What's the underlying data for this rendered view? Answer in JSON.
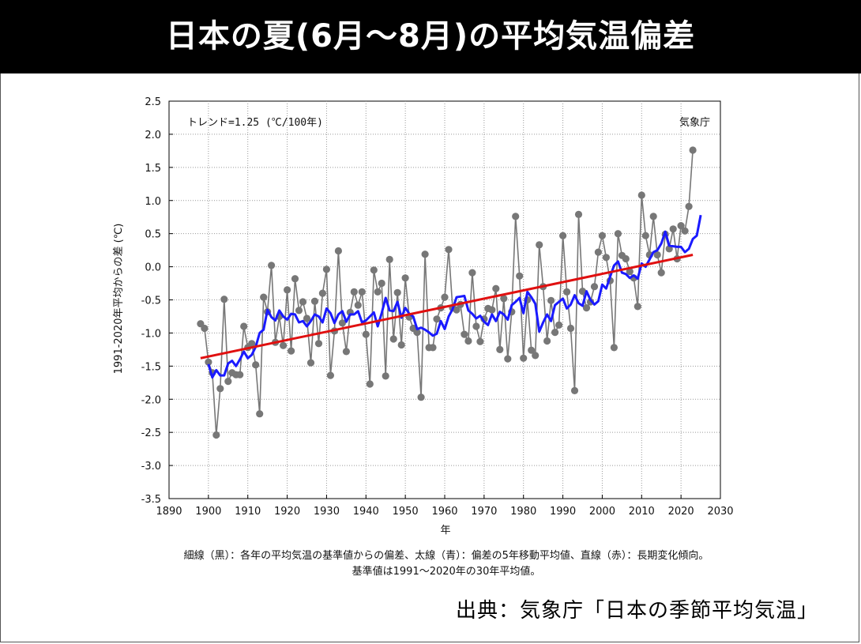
{
  "page": {
    "title": "日本の夏(6月～8月)の平均気温偏差",
    "source": "出典：気象庁「日本の季節平均気温」",
    "footnote_line1": "細線（黒）：各年の平均気温の基準値からの偏差、太線（青）：偏差の5年移動平均値、直線（赤）：長期変化傾向。",
    "footnote_line2": "基準値は1991～2020年の30年平均値。"
  },
  "colors": {
    "annual": "#777777",
    "moving_average": "#1a1aff",
    "trend": "#e01010"
  },
  "chart_data": {
    "type": "line",
    "title": "日本の夏(6月～8月)の平均気温偏差",
    "trend_label": "トレンド=1.25 (℃/100年)",
    "agency_label": "気象庁",
    "xlabel": "年",
    "ylabel": "1991-2020年平均からの差 (℃)",
    "xlim": [
      1890,
      2030
    ],
    "ylim": [
      -3.5,
      2.5
    ],
    "xticks": [
      1890,
      1900,
      1910,
      1920,
      1930,
      1940,
      1950,
      1960,
      1970,
      1980,
      1990,
      2000,
      2010,
      2020,
      2030
    ],
    "xtick_labels": [
      "1890",
      "1900",
      "1910",
      "1920",
      "1930",
      "1940",
      "1950",
      "1960",
      "1970",
      "1980",
      "1990",
      "2000",
      "2010",
      "2020",
      "2030"
    ],
    "yticks": [
      2.5,
      2.0,
      1.5,
      1.0,
      0.5,
      0.0,
      -0.5,
      -1.0,
      -1.5,
      -2.0,
      -2.5,
      -3.0,
      -3.5
    ],
    "ytick_labels": [
      "2.5",
      "2.0",
      "1.5",
      "1.0",
      "0.5",
      "0.0",
      "-0.5",
      "-1.0",
      "-1.5",
      "-2.0",
      "-2.5",
      "-3.0",
      "-3.5"
    ],
    "grid": true,
    "start_year": 1898,
    "series": [
      {
        "name": "各年の平均気温偏差",
        "values": [
          -0.86,
          -0.93,
          -1.44,
          -1.6,
          -2.54,
          -1.84,
          -0.49,
          -1.73,
          -1.6,
          -1.63,
          -1.63,
          -0.9,
          -1.22,
          -1.16,
          -1.48,
          -2.22,
          -0.46,
          -0.68,
          0.02,
          -1.14,
          -0.75,
          -1.19,
          -0.35,
          -1.27,
          -0.18,
          -0.66,
          -0.53,
          -0.78,
          -1.45,
          -0.52,
          -1.16,
          -0.4,
          -0.04,
          -1.64,
          -0.97,
          0.24,
          -0.85,
          -1.28,
          -0.69,
          -0.38,
          -0.58,
          -0.38,
          -1.02,
          -1.77,
          -0.05,
          -0.38,
          -0.25,
          -1.65,
          0.11,
          -1.09,
          -0.39,
          -1.18,
          -0.17,
          -0.76,
          -0.93,
          -0.99,
          -1.97,
          0.19,
          -1.22,
          -1.22,
          -0.79,
          -0.62,
          -0.46,
          0.26,
          -0.62,
          -0.65,
          -0.57,
          -1.02,
          -1.12,
          -0.09,
          -0.9,
          -1.13,
          -0.79,
          -0.63,
          -0.65,
          -0.33,
          -1.25,
          -0.48,
          -1.39,
          -0.68,
          0.76,
          -0.14,
          -1.38,
          -0.5,
          -1.26,
          -1.34,
          0.33,
          -0.3,
          -1.12,
          -0.51,
          -0.99,
          -0.88,
          0.47,
          -0.38,
          -0.93,
          -1.87,
          0.79,
          -0.37,
          -0.62,
          -0.53,
          -0.3,
          0.22,
          0.47,
          0.14,
          -0.21,
          -1.22,
          0.5,
          0.17,
          0.12,
          -0.07,
          -0.17,
          -0.6,
          1.08,
          0.47,
          0.18,
          0.76,
          0.18,
          -0.09,
          0.49,
          0.27,
          0.57,
          0.12,
          0.62,
          0.54,
          0.91,
          1.76
        ]
      },
      {
        "name": "5年移動平均値",
        "start_year": 1900,
        "values": [
          -1.47,
          -1.67,
          -1.56,
          -1.64,
          -1.64,
          -1.46,
          -1.42,
          -1.5,
          -1.4,
          -1.28,
          -1.38,
          -1.33,
          -1.21,
          -1.0,
          -0.95,
          -0.65,
          -0.76,
          -0.81,
          -0.66,
          -0.75,
          -0.8,
          -0.71,
          -0.72,
          -0.84,
          -0.82,
          -0.9,
          -0.82,
          -0.72,
          -0.75,
          -0.84,
          -0.63,
          -0.7,
          -0.85,
          -0.72,
          -0.67,
          -0.83,
          -0.72,
          -0.72,
          -0.67,
          -0.84,
          -0.81,
          -0.75,
          -0.69,
          -0.9,
          -0.7,
          -0.47,
          -0.66,
          -0.67,
          -0.53,
          -0.77,
          -0.62,
          -0.71,
          -0.75,
          -0.94,
          -0.92,
          -0.95,
          -0.99,
          -1.04,
          -1.01,
          -0.82,
          -0.94,
          -0.75,
          -0.64,
          -0.46,
          -0.45,
          -0.44,
          -0.66,
          -0.71,
          -0.78,
          -0.74,
          -0.83,
          -0.88,
          -0.72,
          -0.82,
          -0.68,
          -0.72,
          -0.8,
          -0.58,
          -0.53,
          -0.47,
          -0.7,
          -0.38,
          -0.46,
          -0.56,
          -0.98,
          -0.84,
          -0.72,
          -0.82,
          -0.58,
          -0.53,
          -0.48,
          -0.63,
          -0.57,
          -0.43,
          -0.55,
          -0.59,
          -0.37,
          -0.5,
          -0.57,
          -0.52,
          -0.27,
          -0.33,
          -0.15,
          0.02,
          0.08,
          -0.09,
          -0.11,
          -0.17,
          -0.13,
          -0.18,
          0.05,
          0.0,
          0.11,
          0.22,
          0.25,
          0.35,
          0.53,
          0.32,
          0.31,
          0.3,
          0.3,
          0.22,
          0.27,
          0.42,
          0.47,
          0.78
        ]
      },
      {
        "name": "長期変化傾向",
        "start": [
          1898,
          -1.38
        ],
        "end": [
          2023,
          0.18
        ]
      }
    ]
  }
}
